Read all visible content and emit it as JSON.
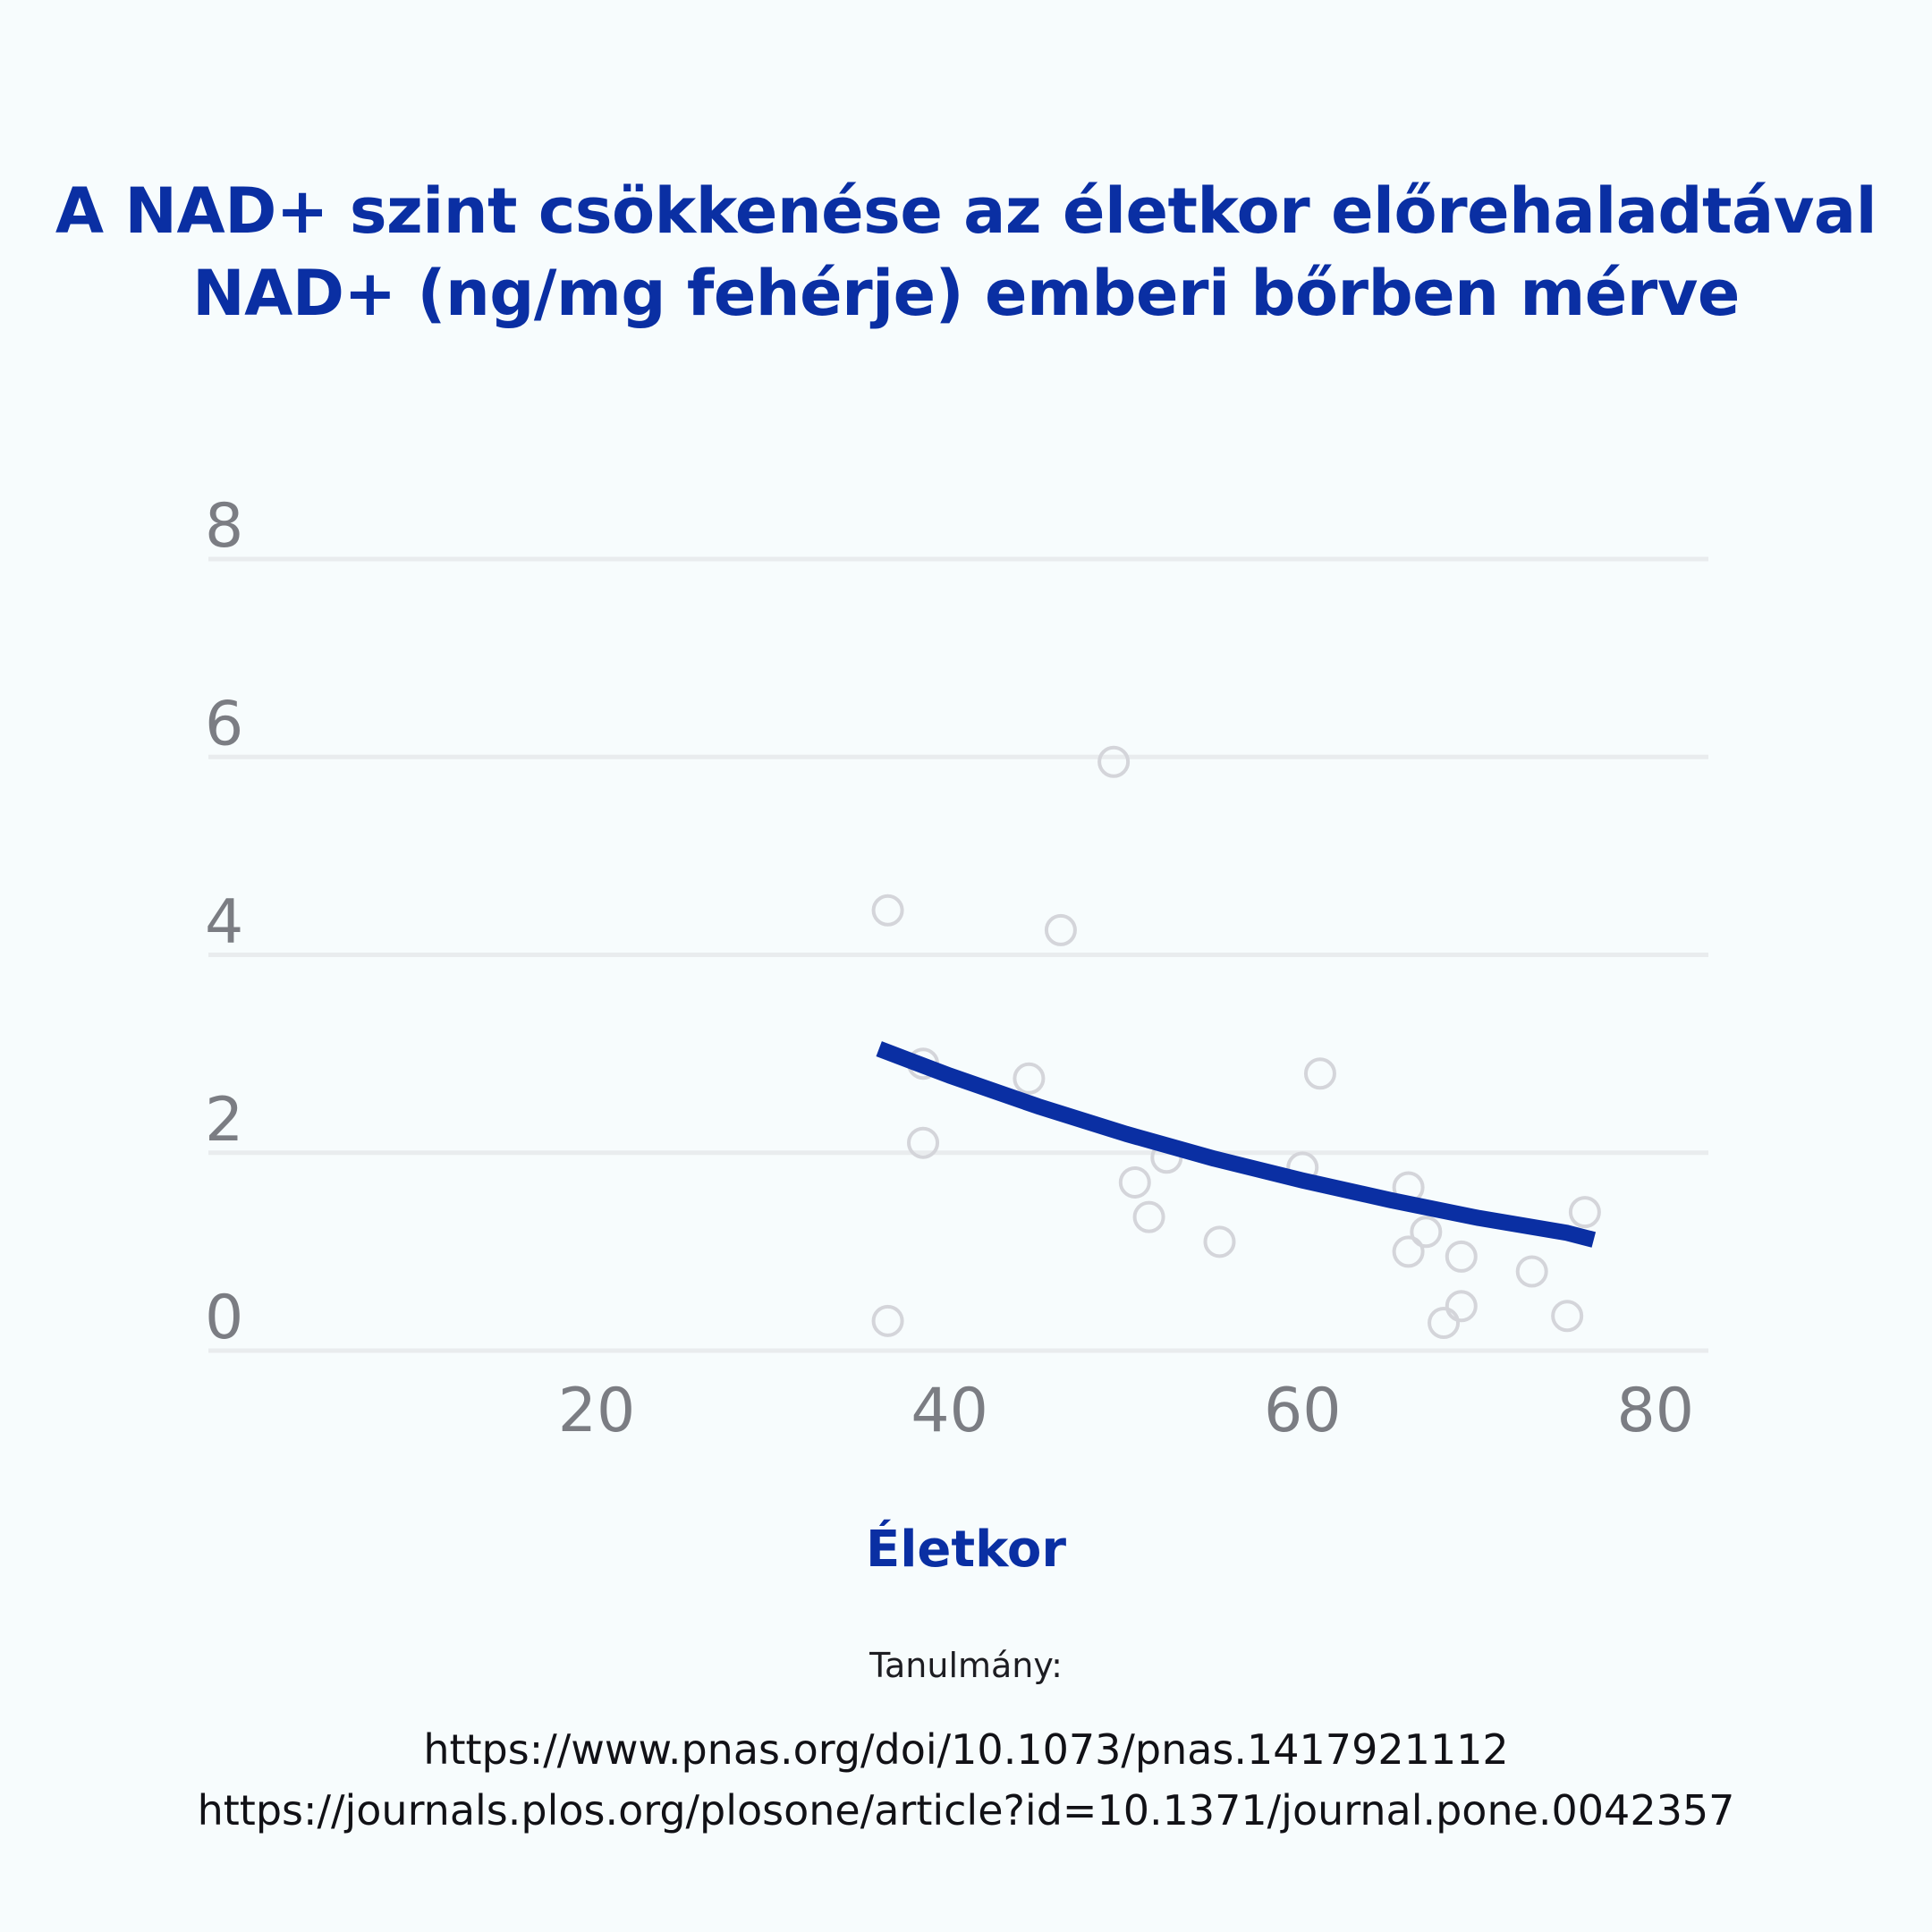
{
  "title": {
    "line1": "A NAD+ szint csökkenése az életkor előrehaladtával",
    "line2": "NAD+ (ng/mg fehérje) emberi bőrben mérve"
  },
  "footer": {
    "label": "Tanulmány:",
    "link1": "https://www.pnas.org/doi/10.1073/pnas.1417921112",
    "link2": "https://journals.plos.org/plosone/article?id=10.1371/journal.pone.0042357"
  },
  "chart_data": {
    "type": "scatter",
    "xlabel": "Életkor",
    "ylabel": "",
    "xlim": [
      -2,
      83
    ],
    "ylim": [
      0,
      8
    ],
    "xticks": [
      20,
      40,
      60,
      80
    ],
    "yticks": [
      0,
      2,
      4,
      6,
      8
    ],
    "grid": "horizontal",
    "colors": {
      "points": "#d4d5da",
      "trend": "#0a2fa3",
      "grid": "#e9ecee",
      "ticks": "#7b7d83"
    },
    "points": [
      {
        "x": 36.5,
        "y": 4.45
      },
      {
        "x": 36.5,
        "y": 0.3
      },
      {
        "x": 38.5,
        "y": 2.1
      },
      {
        "x": 38.5,
        "y": 2.9
      },
      {
        "x": 44.5,
        "y": 2.75
      },
      {
        "x": 46.3,
        "y": 4.25
      },
      {
        "x": 49.3,
        "y": 5.95
      },
      {
        "x": 50.5,
        "y": 1.7
      },
      {
        "x": 51.3,
        "y": 1.35
      },
      {
        "x": 52.3,
        "y": 1.95
      },
      {
        "x": 55.3,
        "y": 1.1
      },
      {
        "x": 60.0,
        "y": 1.85
      },
      {
        "x": 61.0,
        "y": 2.8
      },
      {
        "x": 66.0,
        "y": 1.65
      },
      {
        "x": 66.0,
        "y": 1.0
      },
      {
        "x": 67.0,
        "y": 1.2
      },
      {
        "x": 68.0,
        "y": 0.28
      },
      {
        "x": 69.0,
        "y": 0.95
      },
      {
        "x": 69.0,
        "y": 0.45
      },
      {
        "x": 73.0,
        "y": 0.8
      },
      {
        "x": 75.0,
        "y": 0.35
      },
      {
        "x": 76.0,
        "y": 1.4
      }
    ],
    "trend": {
      "x": [
        36,
        40,
        45,
        50,
        55,
        60,
        65,
        70,
        75,
        76.5
      ],
      "y": [
        3.05,
        2.78,
        2.47,
        2.19,
        1.94,
        1.72,
        1.52,
        1.34,
        1.19,
        1.12
      ]
    }
  }
}
